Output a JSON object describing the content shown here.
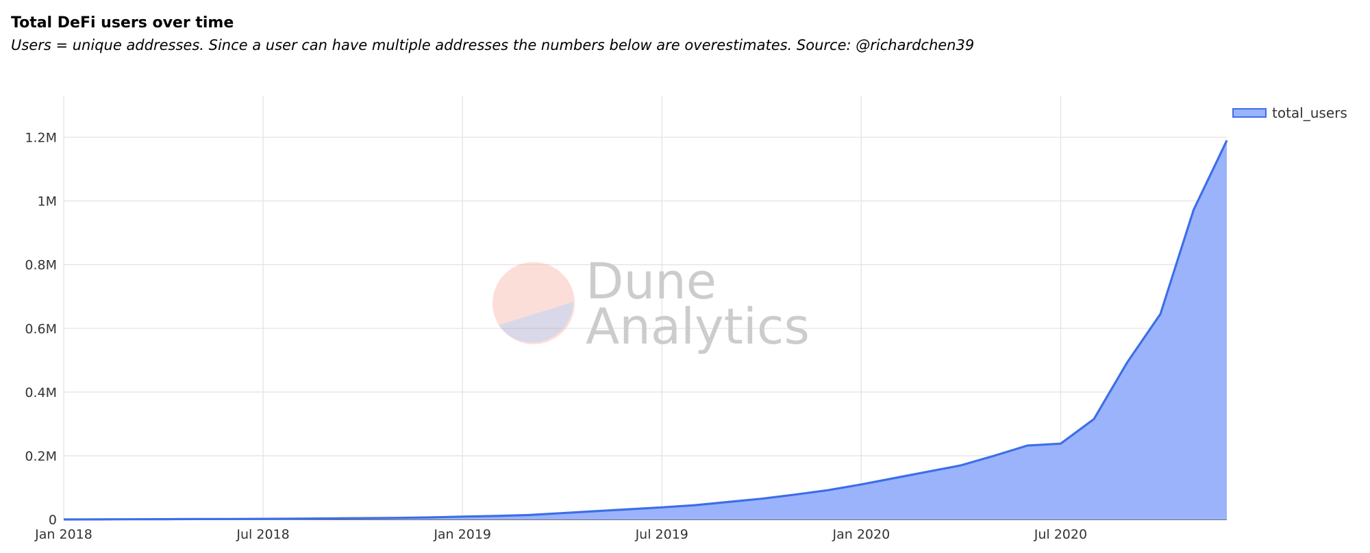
{
  "chart_data": {
    "type": "area",
    "title": "Total DeFi users over time",
    "subtitle": "Users = unique addresses. Since a user can have multiple addresses the numbers below are overestimates. Source: @richardchen39",
    "watermark": [
      "Dune",
      "Analytics"
    ],
    "x": [
      "2018-01",
      "2018-02",
      "2018-03",
      "2018-04",
      "2018-05",
      "2018-06",
      "2018-07",
      "2018-08",
      "2018-09",
      "2018-10",
      "2018-11",
      "2018-12",
      "2019-01",
      "2019-02",
      "2019-03",
      "2019-04",
      "2019-05",
      "2019-06",
      "2019-07",
      "2019-08",
      "2019-09",
      "2019-10",
      "2019-11",
      "2019-12",
      "2020-01",
      "2020-02",
      "2020-03",
      "2020-04",
      "2020-05",
      "2020-06",
      "2020-07",
      "2020-08",
      "2020-09",
      "2020-10",
      "2020-11",
      "2020-12"
    ],
    "series": [
      {
        "name": "total_users",
        "color": "#3d6ee8",
        "fill": "#9ab3fb",
        "values": [
          0,
          300,
          600,
          900,
          1200,
          1600,
          2000,
          2500,
          3200,
          4000,
          5000,
          6500,
          9000,
          11000,
          14000,
          20000,
          26000,
          32000,
          38000,
          45000,
          55000,
          65000,
          78000,
          92000,
          110000,
          130000,
          150000,
          170000,
          200000,
          232000,
          238000,
          315000,
          493000,
          645000,
          972000,
          1190000
        ]
      }
    ],
    "xlim": [
      "2018-01",
      "2020-12"
    ],
    "xticks": [
      {
        "value": "2018-01",
        "label": "Jan 2018"
      },
      {
        "value": "2018-07",
        "label": "Jul 2018"
      },
      {
        "value": "2019-01",
        "label": "Jan 2019"
      },
      {
        "value": "2019-07",
        "label": "Jul 2019"
      },
      {
        "value": "2020-01",
        "label": "Jan 2020"
      },
      {
        "value": "2020-07",
        "label": "Jul 2020"
      }
    ],
    "ylim": [
      0,
      1330000
    ],
    "yticks": [
      0,
      {
        "value": 200000,
        "label": "0.2M"
      },
      {
        "value": 400000,
        "label": "0.4M"
      },
      {
        "value": 600000,
        "label": "0.6M"
      },
      {
        "value": 800000,
        "label": "0.8M"
      },
      {
        "value": 1000000,
        "label": "1M"
      },
      {
        "value": 1200000,
        "label": "1.2M"
      }
    ],
    "grid": true,
    "legend": "top-right"
  }
}
